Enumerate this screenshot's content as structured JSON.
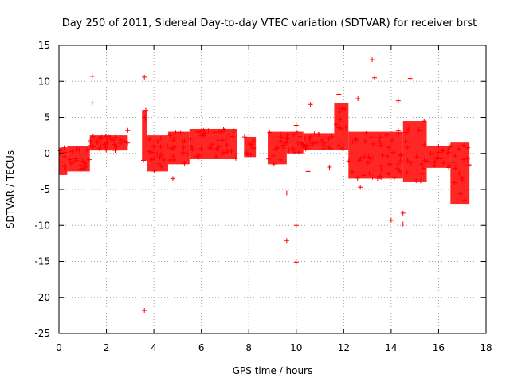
{
  "chart_data": {
    "type": "scatter",
    "title": "Day 250 of 2011, Sidereal Day-to-day VTEC variation (SDTVAR) for receiver brst",
    "xlabel": "GPS time / hours",
    "ylabel": "SDTVAR / TECUs",
    "xlim": [
      0,
      18
    ],
    "ylim": [
      -25,
      15
    ],
    "xticks": [
      0,
      2,
      4,
      6,
      8,
      10,
      12,
      14,
      16,
      18
    ],
    "yticks": [
      -25,
      -20,
      -15,
      -10,
      -5,
      0,
      5,
      10,
      15
    ],
    "grid": true,
    "marker": "+",
    "color": "#ff0000",
    "bands": [
      {
        "x": [
          0.0,
          0.35
        ],
        "ymin": -3.0,
        "ymax": 0.8
      },
      {
        "x": [
          0.35,
          1.3
        ],
        "ymin": -2.5,
        "ymax": 1.0
      },
      {
        "x": [
          1.3,
          2.9
        ],
        "ymin": 0.4,
        "ymax": 2.5
      },
      {
        "x": [
          3.5,
          3.7
        ],
        "ymin": -1.0,
        "ymax": 6.0
      },
      {
        "x": [
          3.7,
          4.6
        ],
        "ymin": -2.5,
        "ymax": 2.5
      },
      {
        "x": [
          4.6,
          5.5
        ],
        "ymin": -1.5,
        "ymax": 3.0
      },
      {
        "x": [
          5.5,
          7.5
        ],
        "ymin": -0.8,
        "ymax": 3.4
      },
      {
        "x": [
          7.8,
          8.3
        ],
        "ymin": -0.5,
        "ymax": 2.3
      },
      {
        "x": [
          8.8,
          9.6
        ],
        "ymin": -1.5,
        "ymax": 3.0
      },
      {
        "x": [
          9.6,
          10.3
        ],
        "ymin": 0.0,
        "ymax": 3.0
      },
      {
        "x": [
          10.3,
          11.6
        ],
        "ymin": 0.5,
        "ymax": 2.8
      },
      {
        "x": [
          11.6,
          12.2
        ],
        "ymin": 0.5,
        "ymax": 7.0
      },
      {
        "x": [
          12.2,
          14.5
        ],
        "ymin": -3.5,
        "ymax": 3.0
      },
      {
        "x": [
          14.5,
          15.5
        ],
        "ymin": -4.0,
        "ymax": 4.5
      },
      {
        "x": [
          15.5,
          16.5
        ],
        "ymin": -2.0,
        "ymax": 1.0
      },
      {
        "x": [
          16.5,
          17.3
        ],
        "ymin": -7.0,
        "ymax": 1.5
      }
    ],
    "outliers": [
      [
        1.4,
        10.7
      ],
      [
        1.4,
        7.0
      ],
      [
        3.6,
        10.6
      ],
      [
        3.6,
        -21.8
      ],
      [
        2.9,
        3.2
      ],
      [
        4.8,
        -3.5
      ],
      [
        9.6,
        -5.5
      ],
      [
        9.6,
        -12.1
      ],
      [
        10.0,
        -10.0
      ],
      [
        10.0,
        -15.1
      ],
      [
        10.0,
        3.9
      ],
      [
        10.5,
        -2.5
      ],
      [
        10.6,
        6.8
      ],
      [
        11.4,
        -1.9
      ],
      [
        11.8,
        8.2
      ],
      [
        12.6,
        7.6
      ],
      [
        12.7,
        -4.7
      ],
      [
        13.2,
        13.0
      ],
      [
        13.3,
        10.5
      ],
      [
        14.0,
        -9.3
      ],
      [
        14.3,
        7.3
      ],
      [
        14.3,
        3.2
      ],
      [
        14.5,
        -8.3
      ],
      [
        14.5,
        -9.8
      ],
      [
        14.8,
        10.4
      ]
    ]
  }
}
